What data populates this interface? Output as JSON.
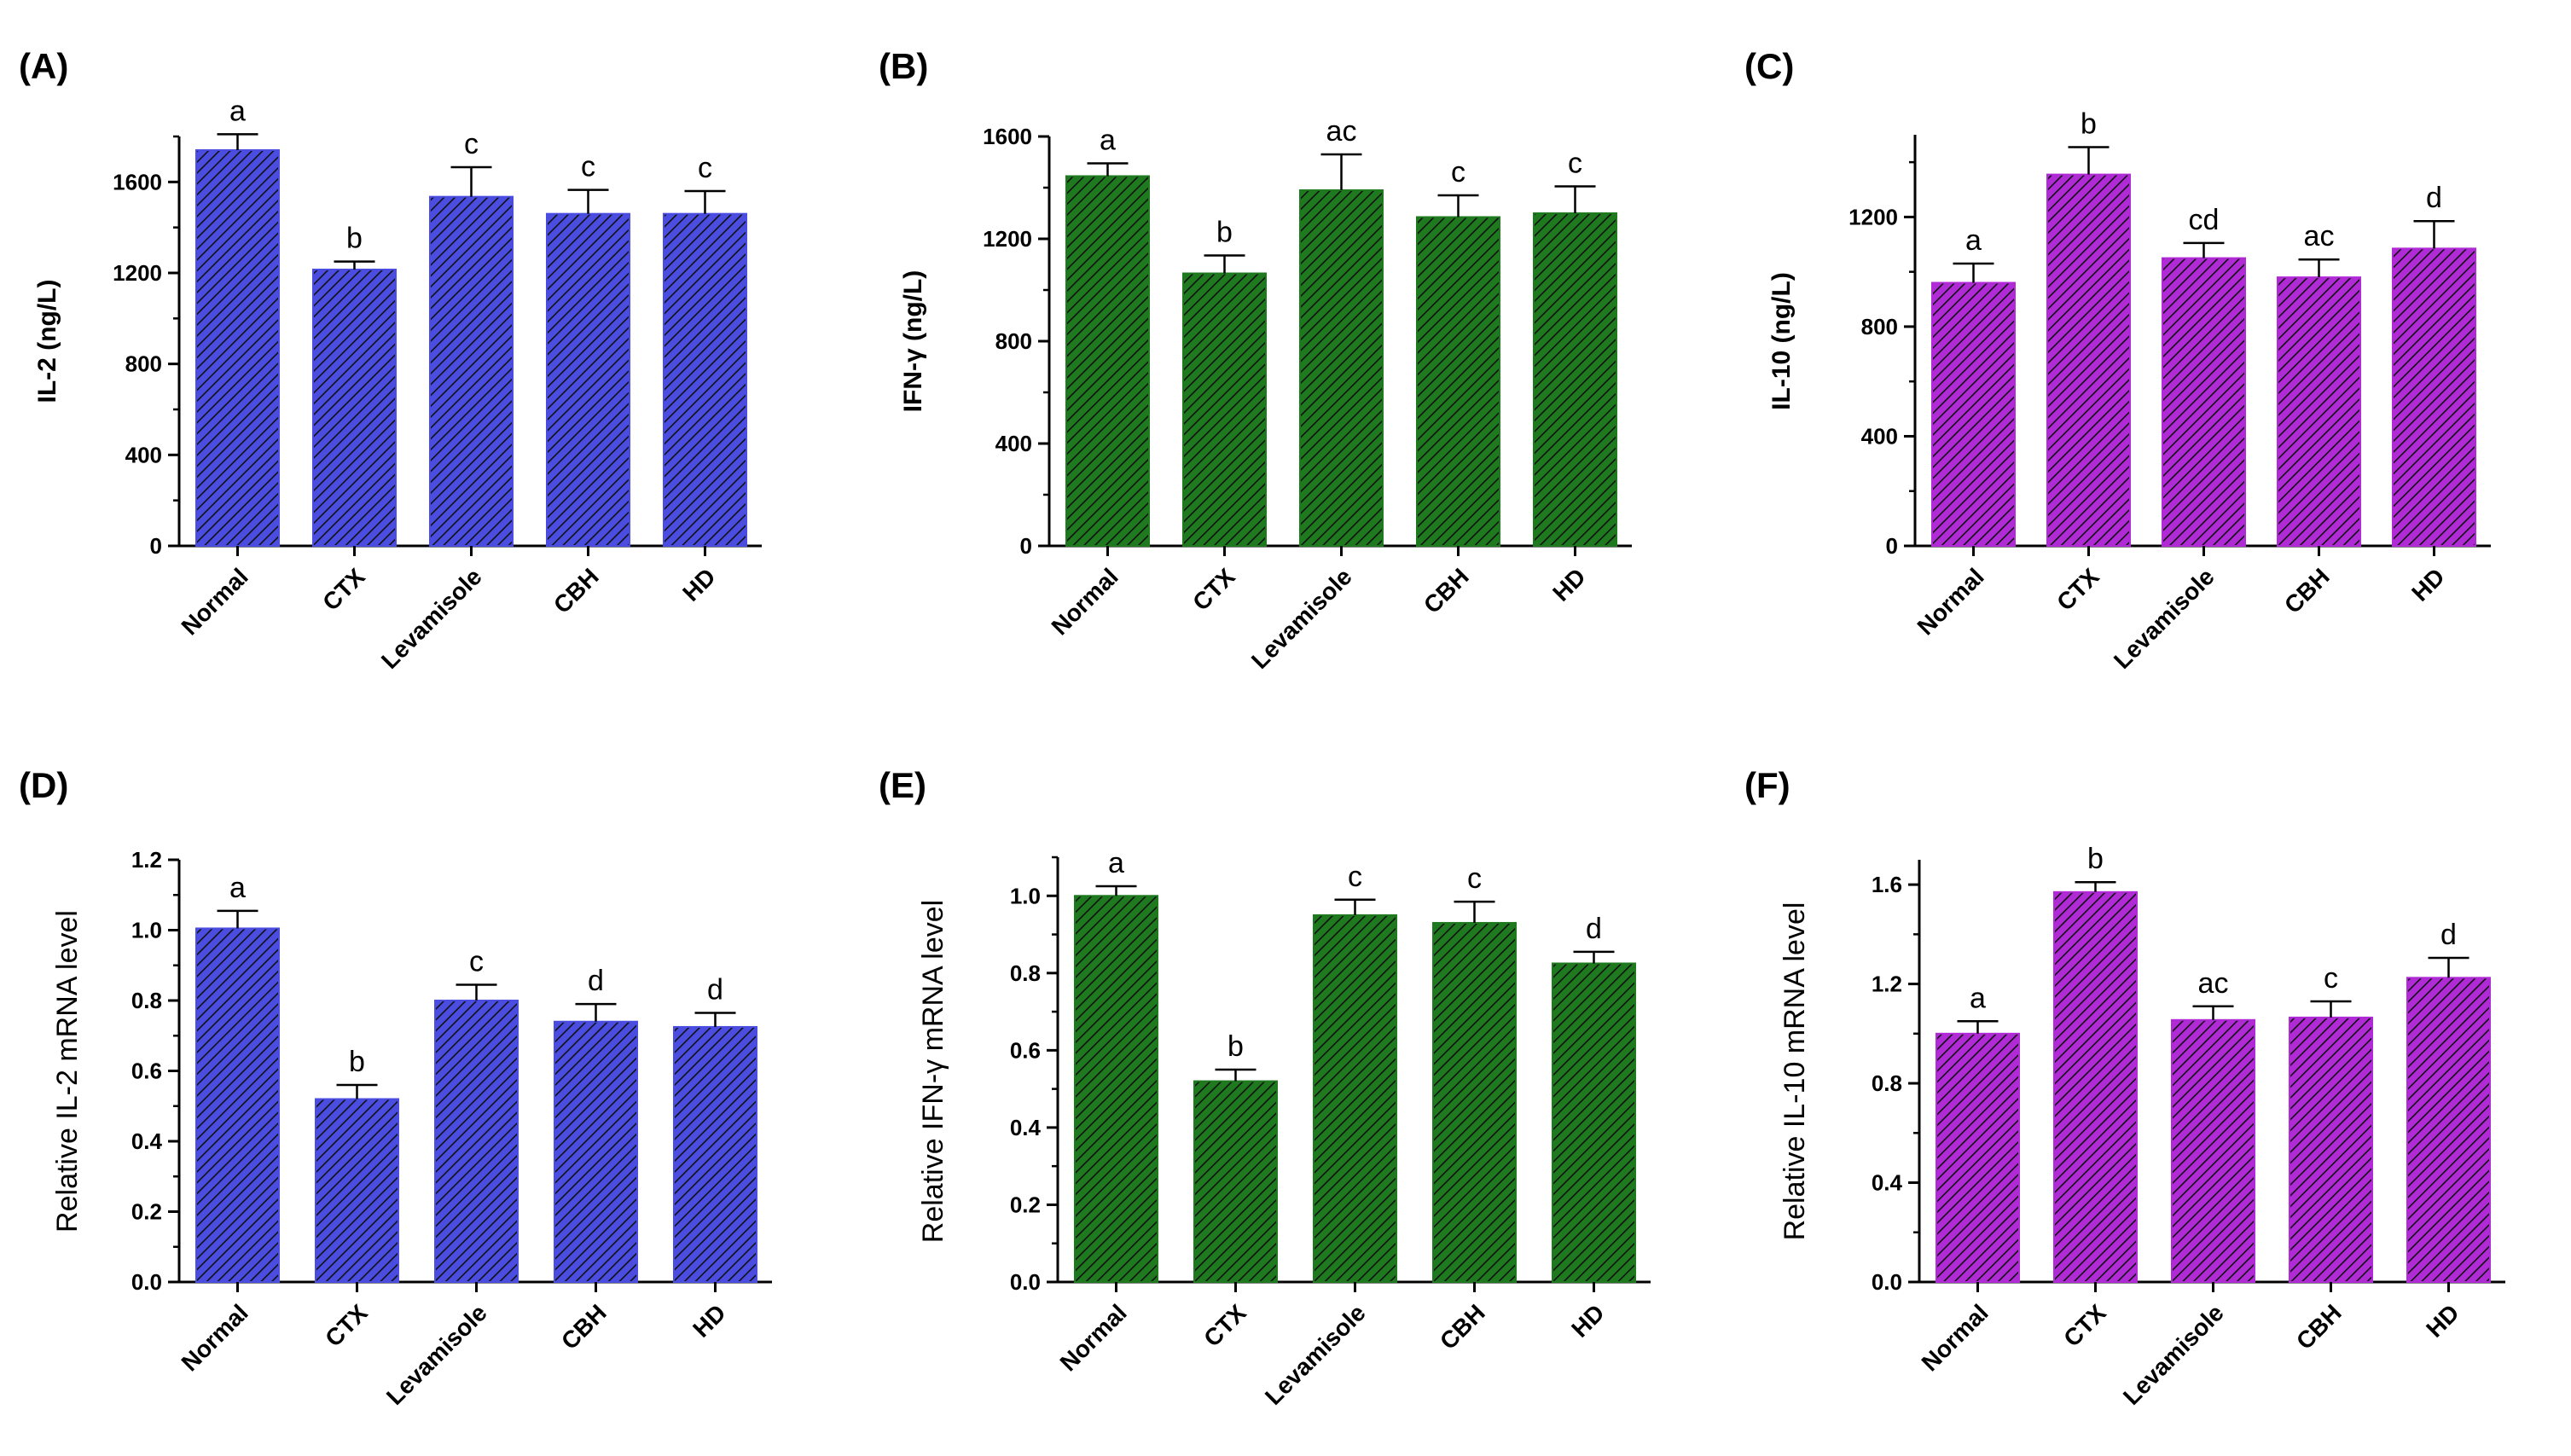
{
  "chart_data": [
    {
      "type": "bar",
      "panel": "(A)",
      "title": "",
      "xlabel": "",
      "ylabel": "IL-2 (ng/L)",
      "categories": [
        "Normal",
        "CTX",
        "Levamisole",
        "CBH",
        "HD"
      ],
      "values": [
        1740,
        1215,
        1535,
        1460,
        1460
      ],
      "errors": [
        70,
        35,
        130,
        105,
        100
      ],
      "significance": [
        "a",
        "b",
        "c",
        "c",
        "c"
      ],
      "ylim": [
        0,
        1800
      ],
      "yticks": [
        0,
        400,
        800,
        1200,
        1600
      ],
      "ytick_labels": [
        "0",
        "400",
        "800",
        "1200",
        "1600"
      ],
      "color": "#4a4de0"
    },
    {
      "type": "bar",
      "panel": "(B)",
      "title": "",
      "xlabel": "",
      "ylabel": "IFN-γ (ng/L)",
      "categories": [
        "Normal",
        "CTX",
        "Levamisole",
        "CBH",
        "HD"
      ],
      "values": [
        1445,
        1065,
        1390,
        1285,
        1300
      ],
      "errors": [
        50,
        70,
        140,
        85,
        105
      ],
      "significance": [
        "a",
        "b",
        "ac",
        "c",
        "c"
      ],
      "ylim": [
        0,
        1600
      ],
      "yticks": [
        0,
        400,
        800,
        1200,
        1600
      ],
      "ytick_labels": [
        "0",
        "400",
        "800",
        "1200",
        "1600"
      ],
      "color": "#1f7a1f"
    },
    {
      "type": "bar",
      "panel": "(C)",
      "title": "",
      "xlabel": "",
      "ylabel": "IL-10 (ng/L)",
      "categories": [
        "Normal",
        "CTX",
        "Levamisole",
        "CBH",
        "HD"
      ],
      "values": [
        960,
        1355,
        1050,
        980,
        1085
      ],
      "errors": [
        70,
        100,
        55,
        65,
        100
      ],
      "significance": [
        "a",
        "b",
        "cd",
        "ac",
        "d"
      ],
      "ylim": [
        0,
        1500
      ],
      "yticks": [
        0,
        400,
        800,
        1200
      ],
      "ytick_labels": [
        "0",
        "400",
        "800",
        "1200"
      ],
      "color": "#b02bd6"
    },
    {
      "type": "bar",
      "panel": "(D)",
      "title": "",
      "xlabel": "",
      "ylabel": "Relative IL-2 mRNA level",
      "categories": [
        "Normal",
        "CTX",
        "Levamisole",
        "CBH",
        "HD"
      ],
      "values": [
        1.005,
        0.52,
        0.8,
        0.74,
        0.725
      ],
      "errors": [
        0.05,
        0.04,
        0.045,
        0.05,
        0.04
      ],
      "significance": [
        "a",
        "b",
        "c",
        "d",
        "d"
      ],
      "ylim": [
        0,
        1.2
      ],
      "yticks": [
        0,
        0.2,
        0.4,
        0.6,
        0.8,
        1.0,
        1.2
      ],
      "ytick_labels": [
        "0.0",
        "0.2",
        "0.4",
        "0.6",
        "0.8",
        "1.0",
        "1.2"
      ],
      "color": "#4a4de0"
    },
    {
      "type": "bar",
      "panel": "(E)",
      "title": "",
      "xlabel": "",
      "ylabel": "Relative IFN-γ mRNA level",
      "categories": [
        "Normal",
        "CTX",
        "Levamisole",
        "CBH",
        "HD"
      ],
      "values": [
        1.0,
        0.52,
        0.95,
        0.93,
        0.825
      ],
      "errors": [
        0.025,
        0.03,
        0.04,
        0.055,
        0.03
      ],
      "significance": [
        "a",
        "b",
        "c",
        "c",
        "d"
      ],
      "ylim": [
        0,
        1.1
      ],
      "yticks": [
        0,
        0.2,
        0.4,
        0.6,
        0.8,
        1.0
      ],
      "ytick_labels": [
        "0.0",
        "0.2",
        "0.4",
        "0.6",
        "0.8",
        "1.0"
      ],
      "color": "#1f7a1f"
    },
    {
      "type": "bar",
      "panel": "(F)",
      "title": "",
      "xlabel": "",
      "ylabel": "Relative IL-10 mRNA level",
      "categories": [
        "Normal",
        "CTX",
        "Levamisole",
        "CBH",
        "HD"
      ],
      "values": [
        1.0,
        1.57,
        1.055,
        1.065,
        1.225
      ],
      "errors": [
        0.05,
        0.04,
        0.055,
        0.065,
        0.08
      ],
      "significance": [
        "a",
        "b",
        "ac",
        "c",
        "d"
      ],
      "ylim": [
        0,
        1.7
      ],
      "yticks": [
        0,
        0.4,
        0.8,
        1.2,
        1.6
      ],
      "ytick_labels": [
        "0.0",
        "0.4",
        "0.8",
        "1.2",
        "1.6"
      ],
      "color": "#b02bd6"
    }
  ]
}
